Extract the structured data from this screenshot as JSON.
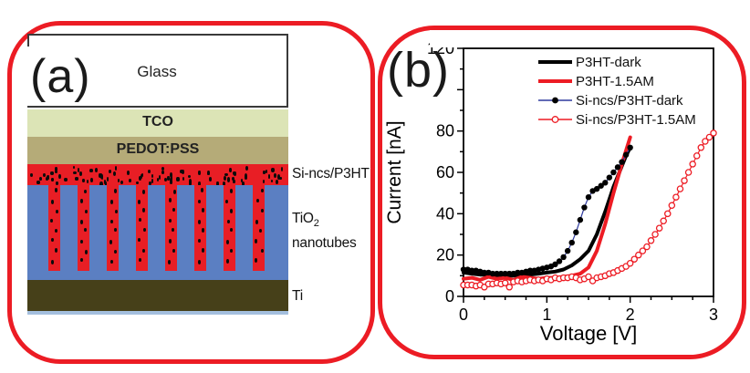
{
  "colors": {
    "panel_border": "#ec1c24",
    "tco": "#dce4b6",
    "pedot": "#b5ab78",
    "si_ncs_red": "#e81e25",
    "tio2_blue": "#5b7fc2",
    "ti_olive": "#464019",
    "bottom_strip": "#a4bfde",
    "curve_black": "#000000",
    "curve_red": "#ed1c24",
    "marker_line_blue": "#2e3a9e"
  },
  "panel_a": {
    "label": "(a)",
    "layers": {
      "glass": "Glass",
      "tco": "TCO",
      "pedot": "PEDOT:PSS"
    },
    "annotations": {
      "sincs": "Si-ncs/P3HT",
      "tio2_main": "TiO",
      "tio2_sub": "2",
      "nanotubes": "nanotubes",
      "ti": "Ti"
    },
    "nanotube_count": 8
  },
  "panel_b": {
    "label": "(b)"
  },
  "chart_data": {
    "type": "line",
    "title": "",
    "xlabel": "Voltage [V]",
    "ylabel": "Current [nA]",
    "xlim": [
      0,
      3
    ],
    "ylim": [
      0,
      120
    ],
    "x_ticks": [
      0,
      1,
      2,
      3
    ],
    "x_tick_labels": [
      "0",
      "1",
      "2",
      "3"
    ],
    "x_minor_step": 0.25,
    "y_ticks": [
      0,
      20,
      40,
      60,
      80,
      100,
      120
    ],
    "y_tick_labels": [
      "0",
      "20",
      "40",
      "60",
      "80",
      "",
      "120"
    ],
    "y_minor_step": 10,
    "grid": false,
    "legend_position": "top-right",
    "series": [
      {
        "name": "P3HT-dark",
        "style": "line",
        "line_color": "#000000",
        "line_width": 4,
        "marker": "none",
        "x": [
          0,
          0.1,
          0.2,
          0.3,
          0.4,
          0.5,
          0.6,
          0.7,
          0.8,
          0.9,
          1.0,
          1.1,
          1.2,
          1.3,
          1.4,
          1.5,
          1.6,
          1.7,
          1.8,
          1.9,
          1.95,
          2.0
        ],
        "y": [
          11.5,
          11,
          10.5,
          10.5,
          10,
          10,
          10,
          10.5,
          10.5,
          11,
          11.5,
          12,
          13,
          15,
          18,
          22,
          30,
          41,
          53,
          63,
          68,
          72
        ]
      },
      {
        "name": "P3HT-1.5AM",
        "style": "line",
        "line_color": "#ed1c24",
        "line_width": 4,
        "marker": "none",
        "x": [
          0,
          0.1,
          0.2,
          0.3,
          0.4,
          0.5,
          0.6,
          0.7,
          0.8,
          0.9,
          1.0,
          1.1,
          1.2,
          1.3,
          1.4,
          1.5,
          1.6,
          1.7,
          1.8,
          1.9,
          2.0
        ],
        "y": [
          8.5,
          9,
          8,
          9.5,
          8.5,
          9,
          8,
          9.5,
          9,
          8.5,
          9,
          9,
          9.5,
          10,
          11,
          14,
          22,
          35,
          50,
          64,
          77
        ]
      },
      {
        "name": "Si-ncs/P3HT-dark",
        "style": "line+markers",
        "line_color": "#2e3a9e",
        "line_width": 1.2,
        "marker": "circle-filled",
        "marker_color": "#000000",
        "x": [
          0,
          0.05,
          0.1,
          0.15,
          0.2,
          0.25,
          0.3,
          0.35,
          0.4,
          0.45,
          0.5,
          0.55,
          0.6,
          0.65,
          0.7,
          0.75,
          0.8,
          0.85,
          0.9,
          0.95,
          1,
          1.05,
          1.1,
          1.15,
          1.2,
          1.25,
          1.3,
          1.35,
          1.4,
          1.45,
          1.5,
          1.55,
          1.6,
          1.65,
          1.7,
          1.75,
          1.8,
          1.85,
          1.9,
          1.95,
          2
        ],
        "y": [
          13,
          13,
          12.5,
          12.5,
          12,
          11.5,
          11.5,
          11,
          11,
          11,
          11,
          11,
          11,
          11.5,
          11.5,
          12,
          12.5,
          12.5,
          13,
          13.5,
          14,
          14.5,
          15.5,
          17,
          19,
          22,
          26,
          31,
          37,
          43,
          48,
          51,
          52,
          53.5,
          55,
          57.5,
          60,
          62.5,
          65,
          68.5,
          72
        ]
      },
      {
        "name": "Si-ncs/P3HT-1.5AM",
        "style": "line+markers",
        "line_color": "#ed1c24",
        "line_width": 1.2,
        "marker": "circle-open",
        "marker_color": "#ed1c24",
        "x": [
          0,
          0.05,
          0.1,
          0.15,
          0.2,
          0.25,
          0.3,
          0.35,
          0.4,
          0.45,
          0.5,
          0.55,
          0.6,
          0.65,
          0.7,
          0.75,
          0.8,
          0.85,
          0.9,
          0.95,
          1,
          1.05,
          1.1,
          1.15,
          1.2,
          1.25,
          1.3,
          1.35,
          1.4,
          1.45,
          1.5,
          1.55,
          1.6,
          1.65,
          1.7,
          1.75,
          1.8,
          1.85,
          1.9,
          1.95,
          2,
          2.05,
          2.1,
          2.15,
          2.2,
          2.25,
          2.3,
          2.35,
          2.4,
          2.45,
          2.5,
          2.55,
          2.6,
          2.65,
          2.7,
          2.75,
          2.8,
          2.85,
          2.9,
          2.95,
          3
        ],
        "y": [
          5.5,
          5.5,
          5.5,
          5,
          5.5,
          4.5,
          6,
          6,
          6.5,
          6,
          6.5,
          4.5,
          7,
          7.5,
          7,
          7.5,
          8,
          7.5,
          8,
          7.5,
          8.5,
          8,
          9,
          8.5,
          9,
          9,
          9.5,
          9,
          8,
          8.5,
          9.5,
          7.5,
          9,
          9.5,
          10,
          11,
          11.5,
          12.5,
          13.5,
          14.5,
          16,
          18,
          20,
          22,
          24,
          27,
          30,
          33,
          36.5,
          40,
          44,
          48,
          52,
          56,
          60,
          64,
          68,
          72,
          75,
          77,
          79
        ]
      }
    ]
  }
}
